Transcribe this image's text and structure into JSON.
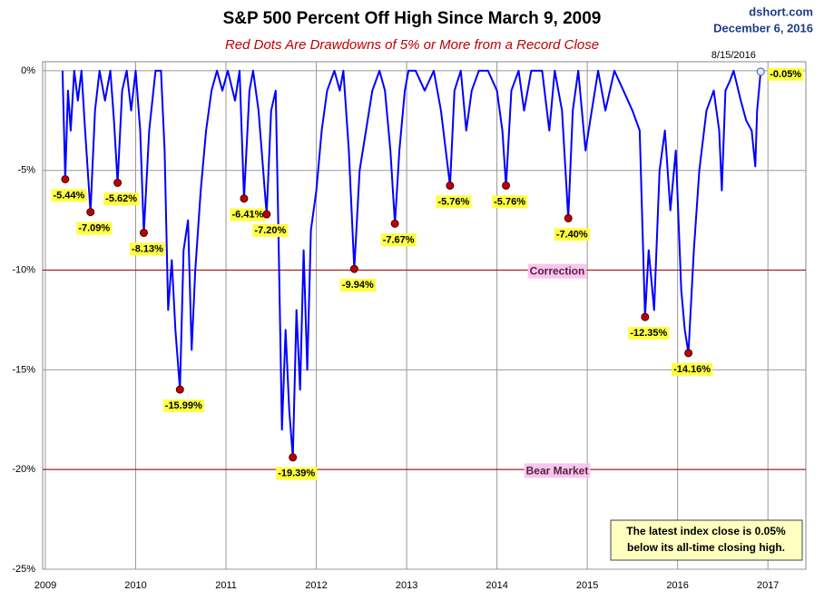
{
  "chart_data": {
    "type": "line",
    "title": "S&P 500 Percent Off High Since March 9, 2009",
    "subtitle": "Red Dots Are Drawdowns of 5% or More from a Record Close",
    "source": "dshort.com",
    "date": "December 6, 2016",
    "xlim": [
      2008.97,
      2017.42
    ],
    "xticks": [
      2009,
      2010,
      2011,
      2012,
      2013,
      2014,
      2015,
      2016,
      2017
    ],
    "ylim": [
      -25,
      0.45
    ],
    "yticks": [
      {
        "value": 0,
        "label": "0%"
      },
      {
        "value": -5,
        "label": "-5%"
      },
      {
        "value": -10,
        "label": "-10%"
      },
      {
        "value": -15,
        "label": "-15%"
      },
      {
        "value": -20,
        "label": "-20%"
      },
      {
        "value": -25,
        "label": "-25%"
      }
    ],
    "grid": true,
    "line": {
      "color": "#0000ff",
      "x": [
        2009.19,
        2009.22,
        2009.25,
        2009.28,
        2009.32,
        2009.36,
        2009.4,
        2009.44,
        2009.5,
        2009.55,
        2009.6,
        2009.66,
        2009.72,
        2009.76,
        2009.8,
        2009.85,
        2009.9,
        2009.95,
        2010.0,
        2010.05,
        2010.09,
        2010.15,
        2010.22,
        2010.28,
        2010.32,
        2010.36,
        2010.4,
        2010.44,
        2010.49,
        2010.53,
        2010.58,
        2010.62,
        2010.66,
        2010.72,
        2010.78,
        2010.84,
        2010.9,
        2010.96,
        2011.02,
        2011.1,
        2011.15,
        2011.2,
        2011.26,
        2011.3,
        2011.36,
        2011.45,
        2011.5,
        2011.55,
        2011.58,
        2011.62,
        2011.66,
        2011.7,
        2011.74,
        2011.78,
        2011.82,
        2011.86,
        2011.9,
        2011.94,
        2012.0,
        2012.06,
        2012.12,
        2012.2,
        2012.26,
        2012.3,
        2012.36,
        2012.42,
        2012.48,
        2012.55,
        2012.62,
        2012.7,
        2012.76,
        2012.82,
        2012.87,
        2012.92,
        2012.98,
        2013.02,
        2013.1,
        2013.2,
        2013.3,
        2013.38,
        2013.48,
        2013.53,
        2013.6,
        2013.66,
        2013.72,
        2013.8,
        2013.9,
        2014.0,
        2014.06,
        2014.1,
        2014.16,
        2014.24,
        2014.3,
        2014.38,
        2014.5,
        2014.58,
        2014.64,
        2014.72,
        2014.79,
        2014.84,
        2014.9,
        2014.98,
        2015.05,
        2015.12,
        2015.2,
        2015.3,
        2015.4,
        2015.5,
        2015.58,
        2015.64,
        2015.68,
        2015.74,
        2015.8,
        2015.86,
        2015.92,
        2015.98,
        2016.04,
        2016.08,
        2016.12,
        2016.18,
        2016.24,
        2016.32,
        2016.4,
        2016.46,
        2016.49,
        2016.53,
        2016.58,
        2016.62,
        2016.7,
        2016.76,
        2016.82,
        2016.86,
        2016.88,
        2016.92
      ],
      "y": [
        0,
        -5.44,
        -1,
        -3,
        0,
        -1.5,
        0,
        -3,
        -7.09,
        -2,
        0,
        -1.5,
        0,
        -2.5,
        -5.62,
        -1,
        0,
        -2,
        0,
        -3,
        -8.13,
        -3,
        0,
        0,
        -4,
        -12,
        -9.5,
        -13,
        -15.99,
        -9,
        -7.5,
        -14,
        -10,
        -6,
        -3,
        -1,
        0,
        -1,
        0,
        -1.5,
        0,
        -6.41,
        -1,
        0,
        -2,
        -7.2,
        -2,
        -1,
        -8,
        -18,
        -13,
        -17,
        -19.39,
        -12,
        -16,
        -9,
        -15,
        -8,
        -6,
        -3,
        -1,
        0,
        -1,
        0,
        -4,
        -9.94,
        -5,
        -3,
        -1,
        0,
        -1,
        -4,
        -7.67,
        -4,
        -1,
        0,
        0,
        -1,
        0,
        -2,
        -5.76,
        -1,
        0,
        -3,
        -1,
        0,
        0,
        -1,
        -3,
        -5.76,
        -1,
        0,
        -2,
        0,
        0,
        -3,
        0,
        -2,
        -7.4,
        -2,
        0,
        -4,
        -2,
        0,
        -2,
        0,
        -1,
        -2,
        -3,
        -12.35,
        -9,
        -12,
        -5,
        -3,
        -7,
        -4,
        -11,
        -13,
        -14.16,
        -9,
        -5,
        -2,
        -1,
        -3,
        -6,
        -1,
        -0.5,
        0,
        -1.5,
        -2.5,
        -3,
        -4.8,
        -2,
        -0.05
      ]
    },
    "drawdowns": {
      "color": "#c00000",
      "x": [
        2009.22,
        2009.5,
        2009.8,
        2010.09,
        2010.49,
        2011.2,
        2011.45,
        2011.74,
        2012.42,
        2012.87,
        2013.48,
        2014.1,
        2014.79,
        2015.64,
        2016.12
      ],
      "values": [
        -5.44,
        -7.09,
        -5.62,
        -8.13,
        -15.99,
        -6.41,
        -7.2,
        -19.39,
        -9.94,
        -7.67,
        -5.76,
        -5.76,
        -7.4,
        -12.35,
        -14.16
      ],
      "value_labels": [
        "-5.44%",
        "-7.09%",
        "-5.62%",
        "-8.13%",
        "-15.99%",
        "-6.41%",
        "-7.20%",
        "-19.39%",
        "-9.94%",
        "-7.67%",
        "-5.76%",
        "-5.76%",
        "-7.40%",
        "-12.35%",
        "-14.16%"
      ]
    },
    "latest": {
      "x": 2016.92,
      "value": -0.05,
      "value_label": "-0.05%"
    },
    "high_marker": {
      "x": 2016.62,
      "label": "8/15/2016"
    },
    "reference_lines": [
      {
        "value": -10,
        "label": "Correction"
      },
      {
        "value": -20,
        "label": "Bear Market"
      }
    ],
    "annotation": [
      "The latest index close is 0.05%",
      "below its all-time closing high."
    ]
  }
}
